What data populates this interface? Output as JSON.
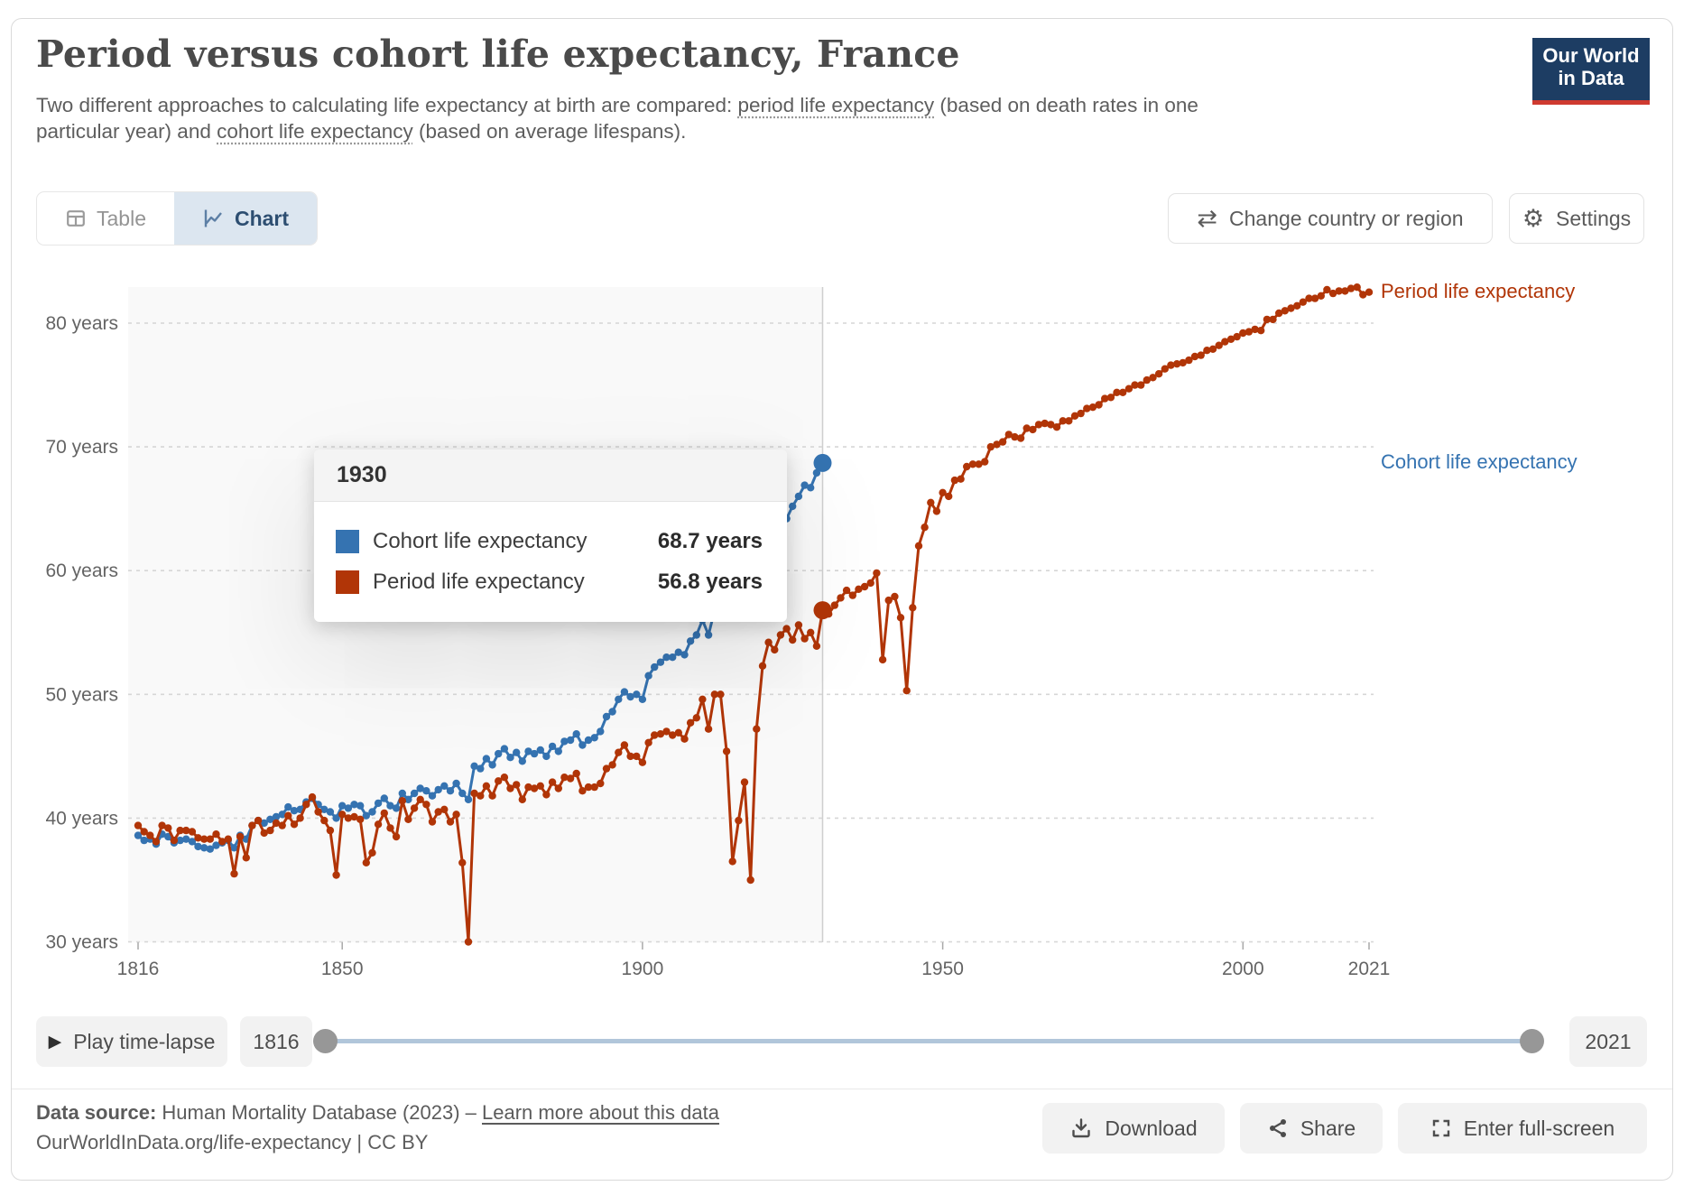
{
  "header": {
    "title": "Period versus cohort life expectancy, France",
    "subtitle_part1": "Two different approaches to calculating life expectancy at birth are compared: ",
    "subtitle_link1": "period life expectancy",
    "subtitle_part2": " (based on death rates in one particular year) and ",
    "subtitle_link2": "cohort life expectancy",
    "subtitle_part3": " (based on average lifespans).",
    "logo_line1": "Our World",
    "logo_line2": "in Data"
  },
  "toolbar": {
    "tab_table": "Table",
    "tab_chart": "Chart",
    "change_country_label": "Change country or region",
    "settings_label": "Settings"
  },
  "icons": {
    "play": "▶",
    "swap": "⇄",
    "gear": "⚙"
  },
  "chart_data": {
    "type": "line",
    "title": "Period versus cohort life expectancy, France",
    "xlabel": "",
    "ylabel": "",
    "xlim": [
      1816,
      2021
    ],
    "ylim": [
      30,
      84
    ],
    "x_ticks": [
      1816,
      1850,
      1900,
      1950,
      2000,
      2021
    ],
    "y_ticks": [
      30,
      40,
      50,
      60,
      70,
      80
    ],
    "y_tick_suffix": " years",
    "grid": "horizontal-dashed",
    "legend_position": "right-end-labels",
    "highlight_year": 1930,
    "series": [
      {
        "name": "Period life expectancy",
        "color": "#B13507",
        "start_year": 1816,
        "values": [
          39.4,
          38.9,
          38.6,
          38.1,
          39.4,
          39.2,
          38.2,
          39.0,
          39.0,
          38.9,
          38.4,
          38.3,
          38.3,
          38.7,
          38.1,
          38.3,
          35.5,
          38.5,
          36.8,
          39.4,
          39.8,
          38.8,
          39.0,
          39.6,
          39.4,
          40.2,
          39.5,
          40.0,
          41.1,
          41.7,
          40.5,
          39.8,
          39.0,
          35.4,
          40.3,
          40.0,
          40.1,
          39.9,
          36.4,
          37.2,
          39.5,
          40.4,
          39.2,
          38.5,
          41.4,
          39.9,
          40.8,
          41.5,
          41.1,
          39.7,
          40.5,
          40.7,
          39.7,
          40.3,
          36.4,
          30.0,
          42.0,
          41.8,
          42.6,
          41.8,
          43.0,
          43.3,
          42.4,
          42.7,
          41.5,
          42.5,
          42.4,
          42.6,
          41.9,
          42.9,
          42.4,
          43.3,
          43.2,
          43.6,
          42.2,
          42.5,
          42.5,
          42.8,
          44.0,
          44.3,
          45.3,
          45.9,
          45.0,
          45.0,
          44.5,
          46.1,
          46.7,
          46.8,
          47.0,
          46.7,
          46.9,
          46.4,
          47.7,
          48.1,
          49.6,
          47.2,
          50.0,
          50.0,
          45.4,
          36.5,
          39.8,
          42.9,
          35.0,
          47.2,
          52.3,
          54.2,
          53.6,
          54.8,
          55.3,
          54.4,
          55.6,
          54.5,
          55.0,
          53.9,
          56.8,
          56.5,
          57.2,
          57.8,
          58.4,
          58.0,
          58.5,
          58.7,
          59.0,
          59.8,
          52.8,
          57.6,
          57.9,
          56.2,
          50.3,
          57.0,
          62.0,
          63.5,
          65.5,
          64.8,
          66.3,
          66.0,
          67.3,
          67.4,
          68.4,
          68.6,
          68.6,
          68.8,
          70.0,
          70.2,
          70.4,
          71.0,
          70.8,
          70.7,
          71.5,
          71.4,
          71.8,
          71.9,
          71.8,
          71.6,
          72.1,
          72.1,
          72.5,
          72.7,
          73.1,
          73.2,
          73.4,
          73.9,
          74.0,
          74.4,
          74.4,
          74.7,
          75.0,
          75.0,
          75.4,
          75.6,
          75.9,
          76.3,
          76.6,
          76.7,
          76.8,
          77.0,
          77.3,
          77.4,
          77.8,
          77.9,
          78.2,
          78.5,
          78.7,
          78.9,
          79.2,
          79.3,
          79.5,
          79.4,
          80.3,
          80.3,
          80.8,
          81.0,
          81.2,
          81.4,
          81.7,
          82.0,
          82.0,
          82.2,
          82.7,
          82.4,
          82.6,
          82.6,
          82.8,
          82.9,
          82.3,
          82.5
        ]
      },
      {
        "name": "Cohort life expectancy",
        "color": "#3573B1",
        "start_year": 1816,
        "values": [
          38.6,
          38.2,
          38.3,
          37.9,
          38.7,
          38.5,
          38.0,
          38.2,
          38.3,
          38.1,
          37.7,
          37.6,
          37.5,
          37.8,
          38.0,
          38.2,
          37.6,
          38.6,
          38.3,
          39.4,
          39.8,
          39.6,
          39.9,
          40.1,
          40.3,
          40.9,
          40.6,
          40.7,
          41.3,
          41.6,
          41.1,
          40.7,
          40.5,
          40.0,
          41.0,
          40.8,
          41.1,
          41.0,
          40.2,
          40.5,
          41.2,
          41.6,
          41.0,
          40.8,
          42.0,
          41.5,
          42.0,
          42.4,
          42.2,
          41.8,
          42.3,
          42.6,
          42.2,
          42.8,
          42.0,
          41.5,
          44.2,
          44.0,
          44.8,
          44.3,
          45.2,
          45.6,
          44.9,
          45.3,
          44.6,
          45.4,
          45.2,
          45.5,
          45.0,
          45.8,
          45.4,
          46.2,
          46.3,
          46.8,
          45.9,
          46.3,
          46.5,
          47.0,
          48.2,
          48.6,
          49.6,
          50.2,
          49.8,
          50.0,
          49.6,
          51.5,
          52.2,
          52.6,
          53.0,
          53.0,
          53.4,
          53.2,
          54.3,
          54.8,
          56.0,
          54.8,
          56.8,
          57.0,
          57.3,
          57.8,
          58.4,
          59.0,
          59.5,
          60.0,
          61.2,
          62.0,
          62.8,
          63.5,
          64.2,
          65.2,
          66.0,
          66.9,
          66.7,
          67.9,
          68.7
        ]
      }
    ]
  },
  "tooltip": {
    "year": "1930",
    "rows": [
      {
        "label": "Cohort life expectancy",
        "value": "68.7 years",
        "color": "#3573B1"
      },
      {
        "label": "Period life expectancy",
        "value": "56.8 years",
        "color": "#B13507"
      }
    ]
  },
  "timeline": {
    "play_label": "Play time-lapse",
    "start_year": "1816",
    "end_year": "2021"
  },
  "footer": {
    "source_prefix": "Data source:",
    "source_text": " Human Mortality Database (2023) – ",
    "source_link": "Learn more about this data",
    "citation": "OurWorldInData.org/life-expectancy | CC BY",
    "download_label": "Download",
    "share_label": "Share",
    "fullscreen_label": "Enter full-screen"
  }
}
